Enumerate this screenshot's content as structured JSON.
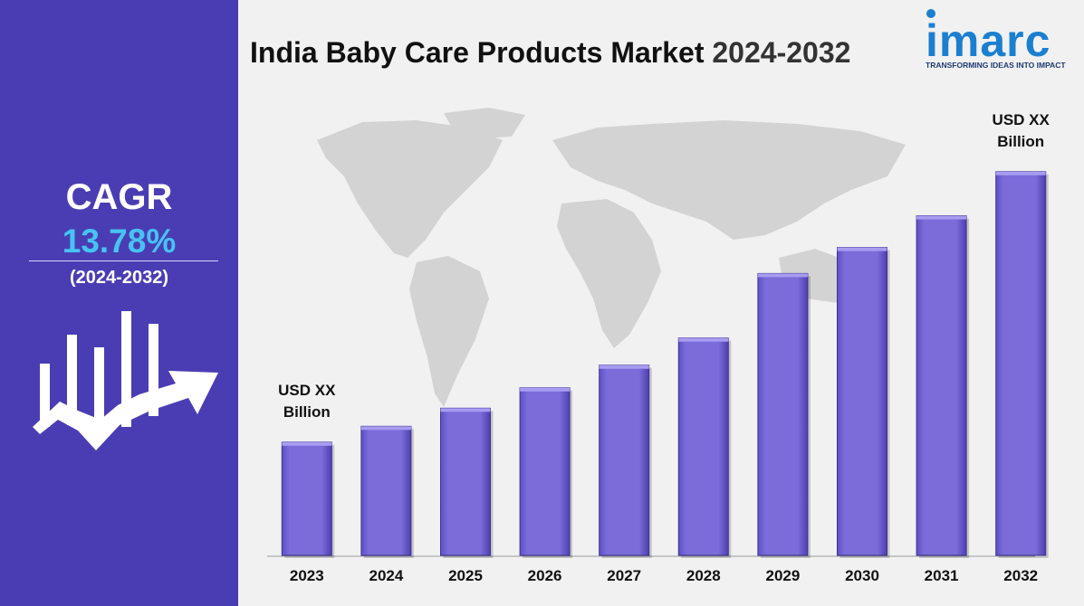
{
  "title": {
    "text": "India Baby Care Products Market",
    "year_range": "2024-2032"
  },
  "brand": {
    "name": "imarc",
    "tagline": "TRANSFORMING IDEAS INTO IMPACT",
    "color": "#1b7fd0"
  },
  "sidebar": {
    "cagr_label": "CAGR",
    "cagr_value": "13.78%",
    "period": "(2024-2032)",
    "icon": "growth-chart-icon",
    "background": "#4a3db4",
    "accent": "#47c3f2"
  },
  "chart_data": {
    "type": "bar",
    "categories": [
      "2023",
      "2024",
      "2025",
      "2026",
      "2027",
      "2028",
      "2029",
      "2030",
      "2031",
      "2032"
    ],
    "values": [
      1.0,
      1.14,
      1.3,
      1.48,
      1.68,
      1.92,
      2.49,
      2.72,
      3.0,
      3.39
    ],
    "annotations": [
      {
        "category": "2023",
        "lines": [
          "USD XX",
          "Billion"
        ]
      },
      {
        "category": "2032",
        "lines": [
          "USD XX",
          "Billion"
        ]
      }
    ],
    "bar_color": "#7a6ad6",
    "ylim": [
      0,
      3.42
    ],
    "grid": false
  }
}
